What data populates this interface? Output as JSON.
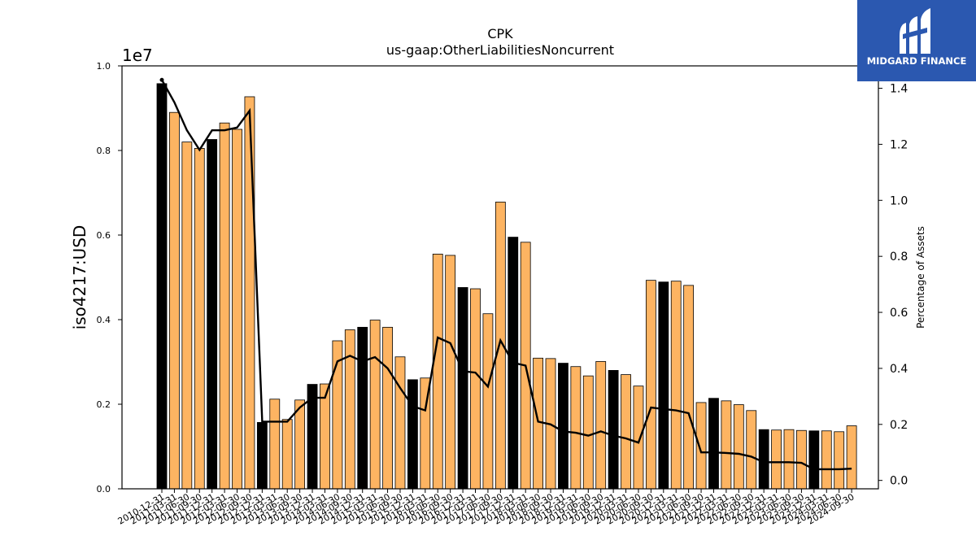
{
  "chart_data": {
    "type": "bar",
    "title": "CPK",
    "subtitle": "us-gaap:OtherLiabilitiesNoncurrent",
    "ylabel": "iso4217:USD",
    "y_multiplier": "1e7",
    "y2label": "Percentage of Assets",
    "ylim": [
      0,
      10000000
    ],
    "y2lim": [
      -0.03,
      1.48
    ],
    "yticks": [
      "0.0",
      "0.2",
      "0.4",
      "0.6",
      "0.8",
      "1.0"
    ],
    "y2ticks": [
      "0.0",
      "0.2",
      "0.4",
      "0.6",
      "0.8",
      "1.0",
      "1.2",
      "1.4"
    ],
    "grid": false,
    "colors": {
      "annual": "#000000",
      "quarterly": "#fdb462",
      "line": "#000000"
    },
    "categories": [
      "2010-12-31",
      "2011-03-31",
      "2011-06-30",
      "2011-09-30",
      "2011-12-31",
      "2012-03-31",
      "2012-06-30",
      "2012-09-30",
      "2012-12-31",
      "2013-03-31",
      "2013-06-30",
      "2013-09-30",
      "2013-12-31",
      "2014-03-31",
      "2014-06-30",
      "2014-09-30",
      "2014-12-31",
      "2015-03-31",
      "2015-06-30",
      "2015-09-30",
      "2015-12-31",
      "2016-03-31",
      "2016-06-30",
      "2016-09-30",
      "2016-12-31",
      "2017-03-31",
      "2017-06-30",
      "2017-09-30",
      "2017-12-31",
      "2018-03-31",
      "2018-06-30",
      "2018-09-30",
      "2018-12-31",
      "2019-03-31",
      "2019-06-30",
      "2019-09-30",
      "2019-12-31",
      "2020-03-31",
      "2020-06-30",
      "2020-09-30",
      "2020-12-31",
      "2021-03-31",
      "2021-06-30",
      "2021-09-30",
      "2021-12-31",
      "2022-03-31",
      "2022-06-30",
      "2022-09-30",
      "2022-12-31",
      "2023-03-31",
      "2023-06-30",
      "2023-09-30",
      "2023-12-31",
      "2024-03-31",
      "2024-06-30",
      "2024-09-30"
    ],
    "series": [
      {
        "kind": "bar",
        "values": [
          9580000,
          8900000,
          8200000,
          8050000,
          8260000,
          8650000,
          8500000,
          9270000,
          1570000,
          2120000,
          1640000,
          2100000,
          2470000,
          2480000,
          3500000,
          3760000,
          3820000,
          3990000,
          3820000,
          3120000,
          2580000,
          2620000,
          5550000,
          5520000,
          4760000,
          4730000,
          4140000,
          6780000,
          5950000,
          5830000,
          3090000,
          3080000,
          2970000,
          2890000,
          2670000,
          3010000,
          2800000,
          2700000,
          2430000,
          4930000,
          4890000,
          4910000,
          4810000,
          2040000,
          2140000,
          2080000,
          1990000,
          1850000,
          1400000,
          1390000,
          1400000,
          1380000,
          1370000,
          1370000,
          1350000,
          1490000
        ],
        "annual": [
          true,
          false,
          false,
          false,
          true,
          false,
          false,
          false,
          true,
          false,
          false,
          false,
          true,
          false,
          false,
          false,
          true,
          false,
          false,
          false,
          true,
          false,
          false,
          false,
          true,
          false,
          false,
          false,
          true,
          false,
          false,
          false,
          true,
          false,
          false,
          false,
          true,
          false,
          false,
          false,
          true,
          false,
          false,
          false,
          true,
          false,
          false,
          false,
          true,
          false,
          false,
          false,
          true,
          false,
          false,
          false
        ]
      },
      {
        "kind": "line",
        "axis": "right",
        "values": [
          1.43,
          1.35,
          1.25,
          1.18,
          1.25,
          1.25,
          1.26,
          1.32,
          0.21,
          0.21,
          0.21,
          0.26,
          0.295,
          0.295,
          0.425,
          0.445,
          0.425,
          0.44,
          0.4,
          0.33,
          0.265,
          0.25,
          0.51,
          0.49,
          0.39,
          0.385,
          0.335,
          0.5,
          0.42,
          0.41,
          0.21,
          0.2,
          0.175,
          0.17,
          0.16,
          0.175,
          0.16,
          0.15,
          0.135,
          0.26,
          0.255,
          0.25,
          0.24,
          0.1,
          0.1,
          0.098,
          0.095,
          0.085,
          0.065,
          0.065,
          0.065,
          0.063,
          0.04,
          0.04,
          0.04,
          0.042
        ]
      }
    ]
  },
  "logo": {
    "text": "MIDGARD FINANCE"
  }
}
